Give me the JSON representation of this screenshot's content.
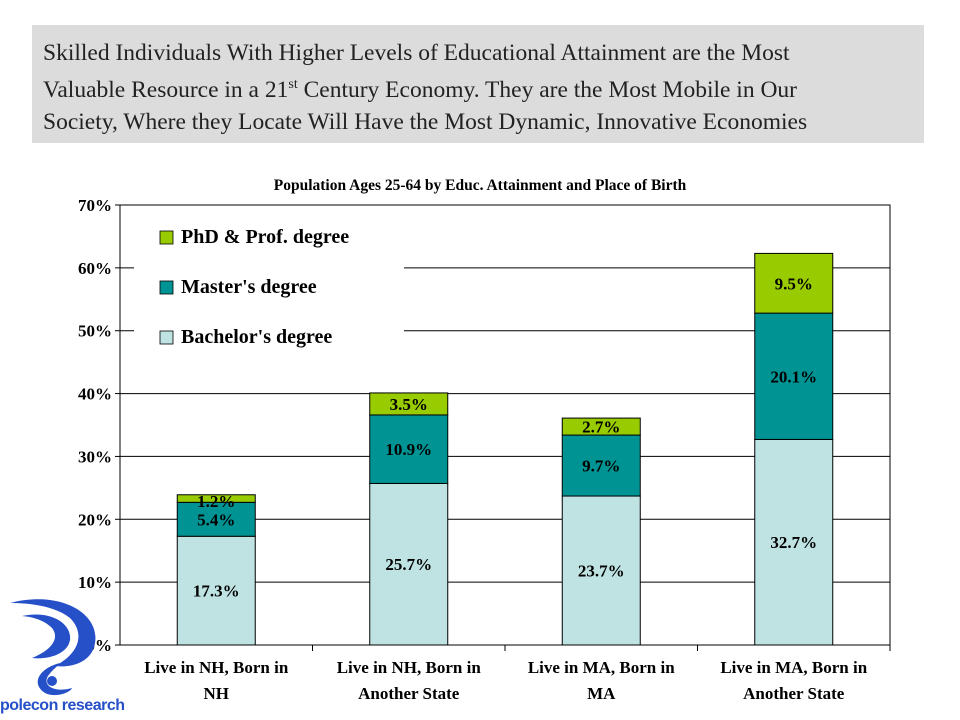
{
  "headline": {
    "line1": "Skilled Individuals With Higher Levels of Educational Attainment are the Most",
    "line2a": "Valuable Resource in a 21",
    "line2sup": "st",
    "line2b": " Century Economy.  They are the Most Mobile in Our",
    "line3": "Society, Where they Locate Will Have the Most Dynamic, Innovative Economies"
  },
  "logo": {
    "text": "polecon research"
  },
  "chart_data": {
    "type": "bar",
    "stacked": true,
    "title": "Population Ages 25-64 by Educ. Attainment and Place of Birth",
    "xlabel": "",
    "ylabel": "",
    "ylim": [
      0,
      70
    ],
    "yticks": [
      "0%",
      "10%",
      "20%",
      "30%",
      "40%",
      "50%",
      "60%",
      "70%"
    ],
    "grid": true,
    "legend_position": "top-left",
    "categories": [
      [
        "Live in NH, Born in",
        "NH"
      ],
      [
        "Live in NH, Born in",
        "Another State"
      ],
      [
        "Live in MA, Born in",
        "MA"
      ],
      [
        "Live in MA, Born in",
        "Another State"
      ]
    ],
    "series": [
      {
        "name": "Bachelor's degree",
        "color": "#bfe3e3",
        "values": [
          17.3,
          25.7,
          23.7,
          32.7
        ],
        "labels": [
          "17.3%",
          "25.7%",
          "23.7%",
          "32.7%"
        ]
      },
      {
        "name": "Master's degree",
        "color": "#009393",
        "values": [
          5.4,
          10.9,
          9.7,
          20.1
        ],
        "labels": [
          "5.4%",
          "10.9%",
          "9.7%",
          "20.1%"
        ]
      },
      {
        "name": "PhD & Prof. degree",
        "color": "#99cc00",
        "values": [
          1.2,
          3.5,
          2.7,
          9.5
        ],
        "labels": [
          "1.2%",
          "3.5%",
          "2.7%",
          "9.5%"
        ]
      }
    ]
  }
}
